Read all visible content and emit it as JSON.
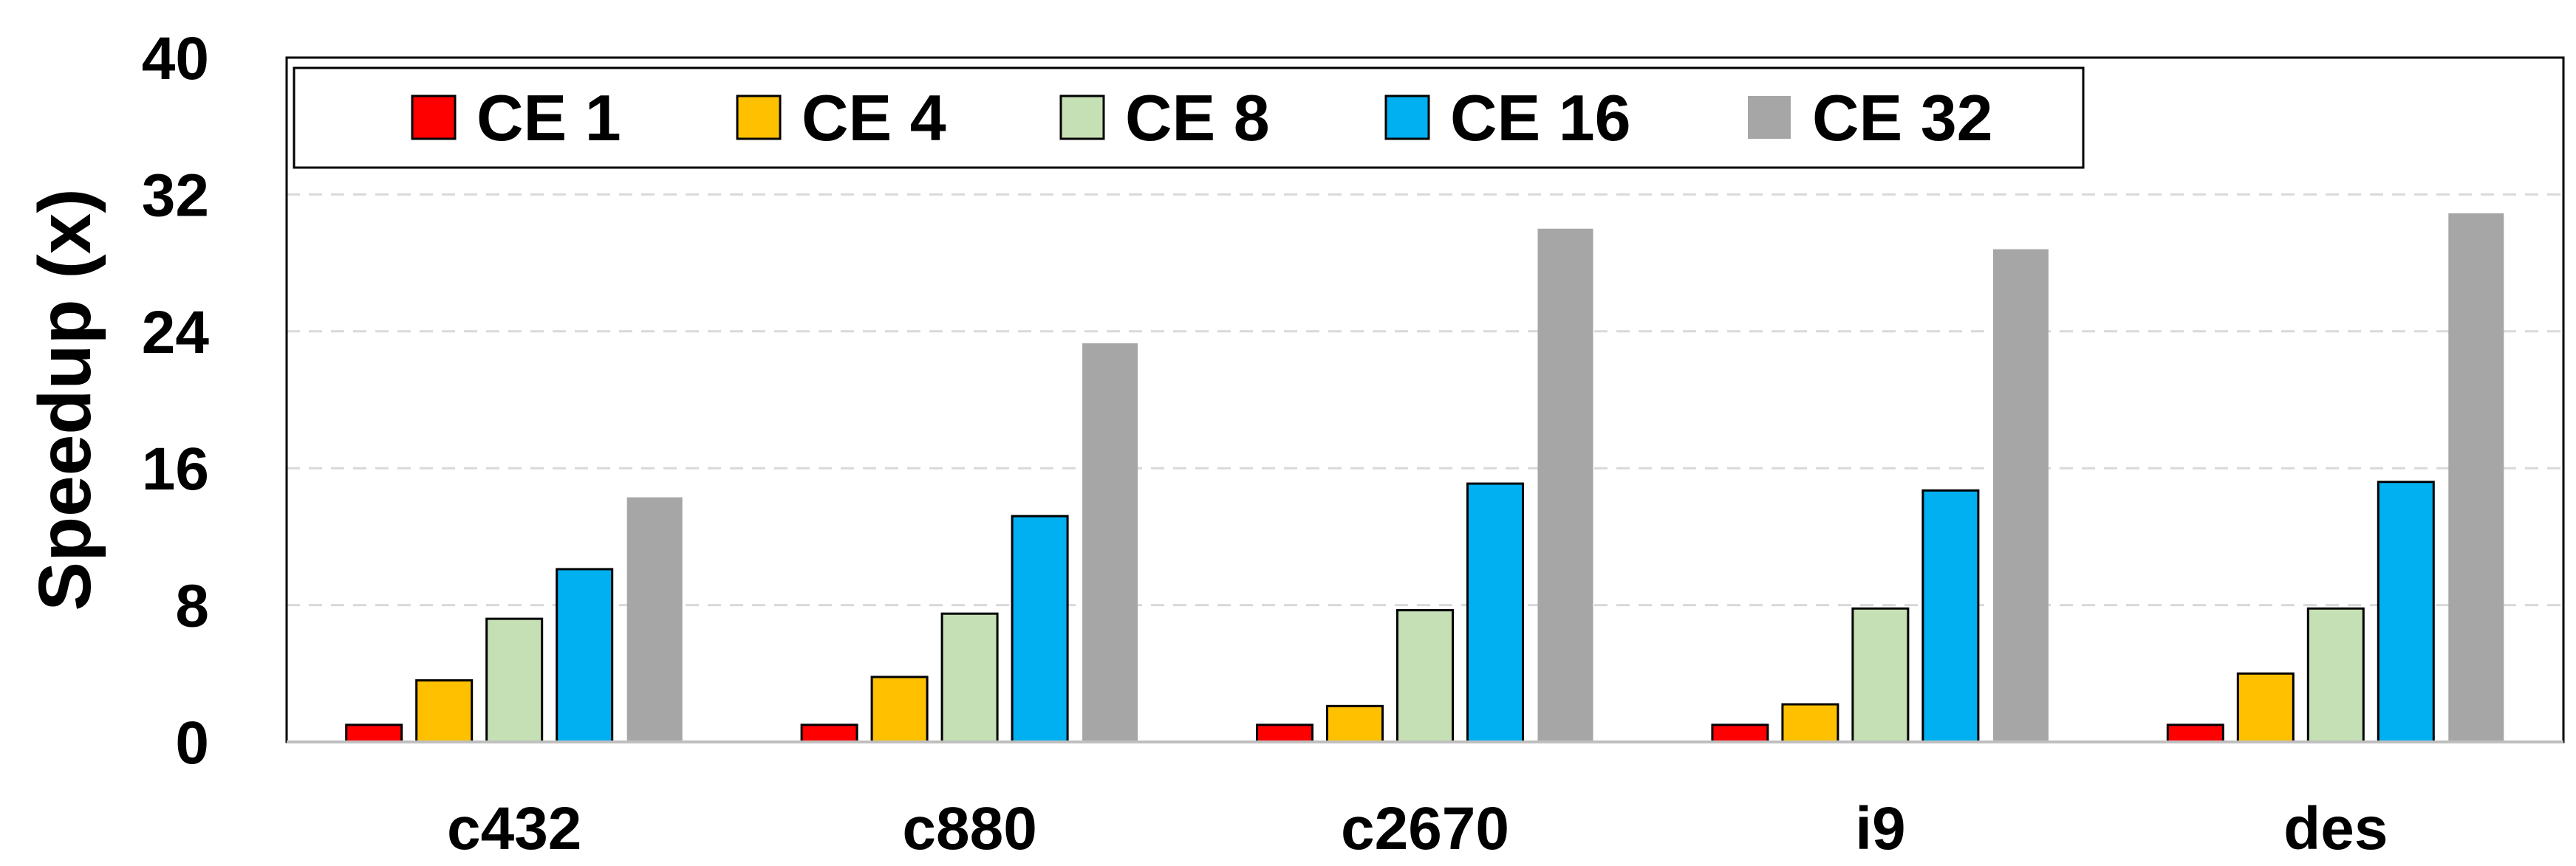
{
  "chart_data": {
    "type": "bar",
    "title": "",
    "xlabel": "",
    "ylabel": "Speedup (x)",
    "ylim": [
      0,
      40
    ],
    "yticks": [
      0,
      8,
      16,
      24,
      32,
      40
    ],
    "grid": true,
    "legend_position": "top-left",
    "categories": [
      "c432",
      "c880",
      "c2670",
      "i9",
      "des"
    ],
    "series": [
      {
        "name": "CE 1",
        "color": "#ff0000",
        "values": [
          1,
          1,
          1,
          1,
          1
        ]
      },
      {
        "name": "CE 4",
        "color": "#ffc000",
        "values": [
          3.6,
          3.8,
          2.1,
          2.2,
          4.0
        ]
      },
      {
        "name": "CE 8",
        "color": "#c5e0b4",
        "values": [
          7.2,
          7.5,
          7.7,
          7.8,
          7.8
        ]
      },
      {
        "name": "CE 16",
        "color": "#00b0f0",
        "values": [
          10.1,
          13.2,
          15.1,
          14.7,
          15.2
        ]
      },
      {
        "name": "CE 32",
        "color": "#a6a6a6",
        "values": [
          14.3,
          23.3,
          30.0,
          28.8,
          30.9
        ]
      }
    ]
  }
}
